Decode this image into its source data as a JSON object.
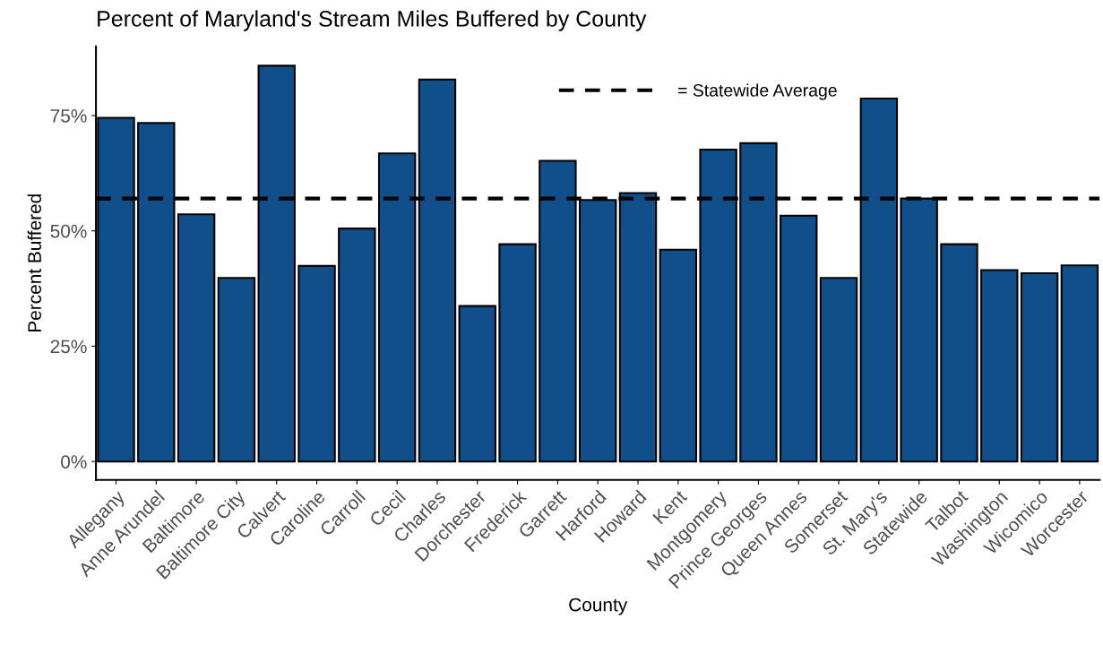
{
  "chart_data": {
    "type": "bar",
    "title": "Percent of Maryland's Stream Miles Buffered by County",
    "xlabel": "County",
    "ylabel": "Percent Buffered",
    "categories": [
      "Allegany",
      "Anne Arundel",
      "Baltimore",
      "Baltimore City",
      "Calvert",
      "Caroline",
      "Carroll",
      "Cecil",
      "Charles",
      "Dorchester",
      "Frederick",
      "Garrett",
      "Harford",
      "Howard",
      "Kent",
      "Montgomery",
      "Prince Georges",
      "Queen Annes",
      "Somerset",
      "St. Mary's",
      "Statewide",
      "Talbot",
      "Washington",
      "Wicomico",
      "Worcester"
    ],
    "values": [
      74.5,
      73.4,
      53.6,
      39.8,
      85.8,
      42.4,
      50.5,
      66.8,
      82.8,
      33.7,
      47.1,
      65.2,
      56.7,
      58.2,
      45.9,
      67.6,
      69.0,
      53.3,
      39.8,
      78.7,
      57.0,
      47.1,
      41.5,
      40.8,
      42.5
    ],
    "color": "#114f8b",
    "ylim": [
      -4,
      90
    ],
    "yticks": [
      {
        "value": 0,
        "label": "0%"
      },
      {
        "value": 25,
        "label": "25%"
      },
      {
        "value": 50,
        "label": "50%"
      },
      {
        "value": 75,
        "label": "75%"
      }
    ],
    "ref_lines": [
      {
        "axis": "y",
        "value": 57,
        "label": "= Statewide Average",
        "color": "#000000",
        "line_style": "dashed"
      }
    ],
    "grid": false,
    "legend": "top"
  }
}
